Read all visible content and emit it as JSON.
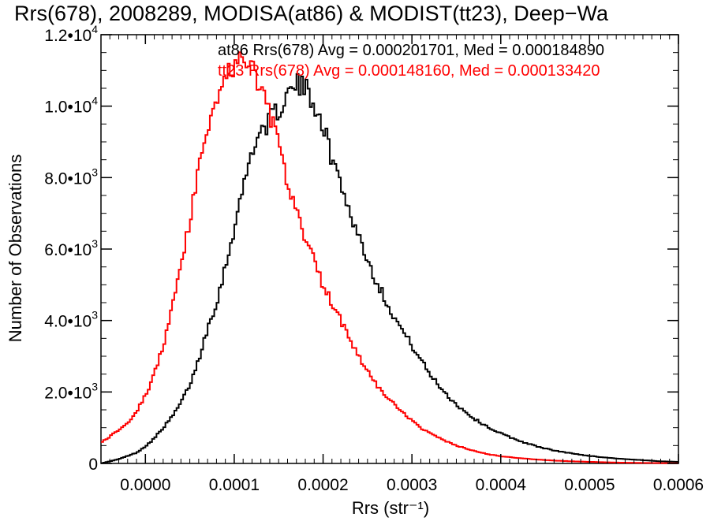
{
  "chart_data": {
    "type": "line",
    "title": "Rrs(678), 2008289, MODISA(at86) & MODIST(tt23), Deep−Wa",
    "xlabel": "Rrs (str⁻¹)",
    "ylabel": "Number of Observations",
    "xlim": [
      -5e-05,
      0.0006
    ],
    "ylim": [
      0,
      12000
    ],
    "grid": false,
    "legend_position": "top-right",
    "x_ticks": [
      {
        "value": 0.0,
        "label": "0.0000"
      },
      {
        "value": 0.0001,
        "label": "0.0001"
      },
      {
        "value": 0.0002,
        "label": "0.0002"
      },
      {
        "value": 0.0003,
        "label": "0.0003"
      },
      {
        "value": 0.0004,
        "label": "0.0004"
      },
      {
        "value": 0.0005,
        "label": "0.0005"
      },
      {
        "value": 0.0006,
        "label": "0.0006"
      }
    ],
    "y_ticks": [
      {
        "value": 0,
        "mant": "0",
        "exp": ""
      },
      {
        "value": 2000,
        "mant": "2.0•10",
        "exp": "3"
      },
      {
        "value": 4000,
        "mant": "4.0•10",
        "exp": "3"
      },
      {
        "value": 6000,
        "mant": "6.0•10",
        "exp": "3"
      },
      {
        "value": 8000,
        "mant": "8.0•10",
        "exp": "3"
      },
      {
        "value": 10000,
        "mant": "1.0•10",
        "exp": "4"
      },
      {
        "value": 12000,
        "mant": "1.2•10",
        "exp": "4"
      }
    ],
    "series": [
      {
        "name": "at86",
        "color": "#000000",
        "legend": "at86 Rrs(678) Avg = 0.000201701, Med = 0.000184890",
        "points": [
          [
            -5e-05,
            0
          ],
          [
            -3e-05,
            120
          ],
          [
            -1e-05,
            300
          ],
          [
            0.0,
            480
          ],
          [
            1e-05,
            700
          ],
          [
            2e-05,
            1000
          ],
          [
            3e-05,
            1300
          ],
          [
            4e-05,
            1700
          ],
          [
            5e-05,
            2200
          ],
          [
            6e-05,
            2900
          ],
          [
            7e-05,
            3800
          ],
          [
            8e-05,
            4500
          ],
          [
            9e-05,
            5500
          ],
          [
            0.0001,
            6600
          ],
          [
            0.00011,
            7700
          ],
          [
            0.00012,
            8800
          ],
          [
            0.00013,
            9300
          ],
          [
            0.00014,
            9600
          ],
          [
            0.00015,
            9900
          ],
          [
            0.00016,
            10300
          ],
          [
            0.00017,
            10600
          ],
          [
            0.00018,
            10500
          ],
          [
            0.00019,
            10100
          ],
          [
            0.0002,
            9500
          ],
          [
            0.00021,
            8500
          ],
          [
            0.00022,
            7900
          ],
          [
            0.00023,
            7000
          ],
          [
            0.00024,
            6400
          ],
          [
            0.00025,
            5700
          ],
          [
            0.00026,
            5100
          ],
          [
            0.00027,
            4600
          ],
          [
            0.00028,
            4100
          ],
          [
            0.00029,
            3700
          ],
          [
            0.0003,
            3300
          ],
          [
            0.00031,
            2900
          ],
          [
            0.00032,
            2500
          ],
          [
            0.00033,
            2200
          ],
          [
            0.00034,
            1900
          ],
          [
            0.00035,
            1650
          ],
          [
            0.00036,
            1450
          ],
          [
            0.00037,
            1250
          ],
          [
            0.00038,
            1100
          ],
          [
            0.00039,
            960
          ],
          [
            0.0004,
            840
          ],
          [
            0.00042,
            640
          ],
          [
            0.00044,
            480
          ],
          [
            0.00046,
            360
          ],
          [
            0.00048,
            280
          ],
          [
            0.0005,
            210
          ],
          [
            0.00052,
            160
          ],
          [
            0.00054,
            120
          ],
          [
            0.00056,
            90
          ],
          [
            0.00058,
            60
          ],
          [
            0.0006,
            45
          ]
        ]
      },
      {
        "name": "tt23",
        "color": "#ff0000",
        "legend": "tt23 Rrs(678) Avg = 0.000148160, Med = 0.000133420",
        "points": [
          [
            -5e-05,
            600
          ],
          [
            -4e-05,
            750
          ],
          [
            -3e-05,
            950
          ],
          [
            -2e-05,
            1150
          ],
          [
            -1e-05,
            1450
          ],
          [
            0.0,
            1900
          ],
          [
            1e-05,
            2500
          ],
          [
            2e-05,
            3300
          ],
          [
            3e-05,
            4300
          ],
          [
            4e-05,
            5500
          ],
          [
            5e-05,
            6800
          ],
          [
            6e-05,
            8200
          ],
          [
            7e-05,
            9400
          ],
          [
            8e-05,
            10300
          ],
          [
            9e-05,
            10800
          ],
          [
            0.0001,
            11100
          ],
          [
            0.00011,
            11300
          ],
          [
            0.00012,
            11100
          ],
          [
            0.00013,
            10500
          ],
          [
            0.00014,
            9800
          ],
          [
            0.00015,
            8900
          ],
          [
            0.00016,
            7800
          ],
          [
            0.00017,
            7000
          ],
          [
            0.00018,
            6300
          ],
          [
            0.00019,
            5700
          ],
          [
            0.0002,
            5000
          ],
          [
            0.00021,
            4500
          ],
          [
            0.00022,
            4000
          ],
          [
            0.00023,
            3500
          ],
          [
            0.00024,
            3000
          ],
          [
            0.00025,
            2600
          ],
          [
            0.00026,
            2200
          ],
          [
            0.00027,
            1900
          ],
          [
            0.00028,
            1650
          ],
          [
            0.00029,
            1400
          ],
          [
            0.0003,
            1200
          ],
          [
            0.00031,
            1000
          ],
          [
            0.00032,
            850
          ],
          [
            0.00033,
            720
          ],
          [
            0.00034,
            600
          ],
          [
            0.00035,
            500
          ],
          [
            0.00036,
            420
          ],
          [
            0.00037,
            350
          ],
          [
            0.00038,
            290
          ],
          [
            0.00039,
            240
          ],
          [
            0.0004,
            200
          ],
          [
            0.00042,
            150
          ],
          [
            0.00044,
            110
          ],
          [
            0.00046,
            80
          ],
          [
            0.00048,
            60
          ],
          [
            0.0005,
            45
          ],
          [
            0.00052,
            30
          ],
          [
            0.00054,
            20
          ],
          [
            0.00056,
            15
          ],
          [
            0.00058,
            10
          ],
          [
            0.0006,
            5
          ]
        ]
      }
    ]
  }
}
